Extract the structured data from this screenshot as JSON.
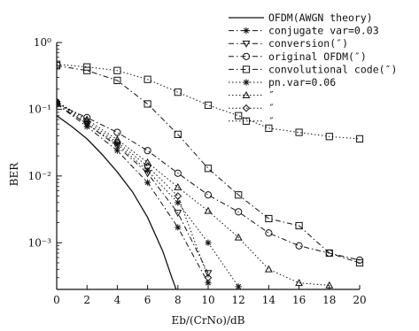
{
  "chart_data": {
    "type": "line",
    "title": "",
    "xlabel": "Eb/(CrNo)/dB",
    "ylabel": "BER",
    "xlim": [
      0,
      20
    ],
    "ylim": [
      0.0002,
      1
    ],
    "yscale": "log",
    "grid": false,
    "legend_position": "top-right",
    "x_ticks": [
      "0",
      "2",
      "4",
      "6",
      "8",
      "10",
      "12",
      "14",
      "16",
      "18",
      "20"
    ],
    "y_ticks": [
      {
        "value": 1,
        "label": "10⁰"
      },
      {
        "value": 0.1,
        "label": "10⁻¹"
      },
      {
        "value": 0.01,
        "label": "10⁻²"
      },
      {
        "value": 0.001,
        "label": "10⁻³"
      }
    ],
    "series": [
      {
        "name": "OFDM(AWGN theory)",
        "marker": "none",
        "dash": "solid",
        "x": [
          0,
          1,
          2,
          3,
          4,
          5,
          6,
          7,
          7.6,
          8
        ],
        "y": [
          0.08,
          0.055,
          0.036,
          0.021,
          0.0115,
          0.0058,
          0.0024,
          0.00075,
          0.0003,
          0.00017
        ]
      },
      {
        "name": "conjugate var=0.03",
        "marker": "star",
        "dash": "dashdot",
        "x": [
          0,
          2,
          4,
          6,
          8,
          10
        ],
        "y": [
          0.12,
          0.055,
          0.024,
          0.008,
          0.0017,
          0.00025
        ]
      },
      {
        "name": "conversion(″)",
        "marker": "triangle-down",
        "dash": "dashdot",
        "x": [
          0,
          2,
          4,
          6,
          8,
          10
        ],
        "y": [
          0.12,
          0.06,
          0.028,
          0.011,
          0.0028,
          0.00035
        ]
      },
      {
        "name": "original OFDM(″)",
        "marker": "circle",
        "dash": "dashdot",
        "x": [
          0,
          2,
          4,
          6,
          8,
          10,
          12,
          14,
          16,
          18,
          20
        ],
        "y": [
          0.12,
          0.075,
          0.045,
          0.024,
          0.011,
          0.0052,
          0.0029,
          0.0014,
          0.0009,
          0.0007,
          0.00055
        ]
      },
      {
        "name": "convolutional code(″)",
        "marker": "square",
        "dash": "dashdot",
        "x": [
          0,
          2,
          4,
          6,
          8,
          10,
          12,
          14,
          16,
          18,
          20
        ],
        "y": [
          0.45,
          0.38,
          0.27,
          0.12,
          0.042,
          0.013,
          0.0052,
          0.0023,
          0.0018,
          0.0007,
          0.0005
        ]
      },
      {
        "name": "pn.var=0.06",
        "marker": "star",
        "dash": "dotted",
        "x": [
          0,
          2,
          4,
          6,
          8,
          10,
          12
        ],
        "y": [
          0.13,
          0.06,
          0.03,
          0.012,
          0.004,
          0.001,
          0.00022
        ]
      },
      {
        "name": "″",
        "marker": "triangle-up",
        "dash": "dotted",
        "x": [
          0,
          2,
          4,
          6,
          8,
          10,
          12,
          14,
          16,
          18
        ],
        "y": [
          0.13,
          0.07,
          0.035,
          0.016,
          0.0068,
          0.003,
          0.0012,
          0.0004,
          0.00025,
          0.00023
        ]
      },
      {
        "name": "″",
        "marker": "diamond",
        "dash": "dotted",
        "x": [
          0,
          2,
          4,
          6,
          8,
          10
        ],
        "y": [
          0.13,
          0.065,
          0.032,
          0.014,
          0.005,
          0.0003
        ]
      },
      {
        "name": "″",
        "marker": "square",
        "dash": "dotted",
        "x": [
          0,
          2,
          4,
          6,
          8,
          10,
          12,
          14,
          16,
          18,
          20
        ],
        "y": [
          0.47,
          0.43,
          0.38,
          0.28,
          0.18,
          0.115,
          0.08,
          0.052,
          0.045,
          0.039,
          0.036
        ]
      }
    ]
  }
}
